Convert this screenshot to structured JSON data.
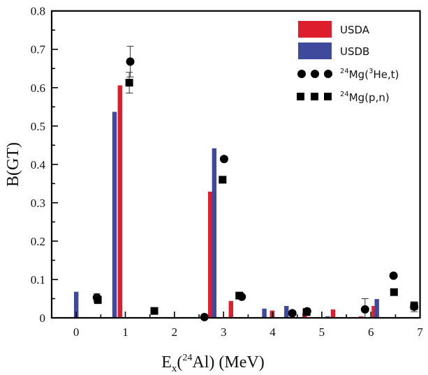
{
  "chart_data": {
    "type": "bar",
    "xlabel_main": "E",
    "xlabel_sub": "x",
    "xlabel_open": "(",
    "xlabel_sup": "24",
    "xlabel_rest": "Al) (MeV)",
    "ylabel": "B(GT)",
    "xlim": [
      -0.5,
      7
    ],
    "ylim": [
      0,
      0.8
    ],
    "xticks": [
      "0",
      "1",
      "2",
      "3",
      "4",
      "5",
      "6",
      "7"
    ],
    "yticks": [
      "0",
      "0.1",
      "0.2",
      "0.3",
      "0.4",
      "0.5",
      "0.6",
      "0.7",
      "0.8"
    ],
    "grid": false,
    "legend_position": "top-right",
    "colors": {
      "USDA": "#dc1e2d",
      "USDB": "#3f4a9c",
      "exp": "#000000"
    },
    "series": [
      {
        "name": "USDA",
        "kind": "bar",
        "x": [
          0.89,
          2.73,
          3.15,
          3.99,
          4.65,
          5.23,
          5.8,
          6.06
        ],
        "y": [
          0.606,
          0.329,
          0.044,
          0.019,
          0.013,
          0.022,
          0.004,
          0.031
        ]
      },
      {
        "name": "USDB",
        "kind": "bar",
        "x": [
          0.0,
          0.78,
          2.81,
          3.83,
          4.28,
          5.12,
          6.12
        ],
        "y": [
          0.068,
          0.537,
          0.442,
          0.024,
          0.031,
          0.004,
          0.049
        ]
      },
      {
        "name": "24Mg(3He,t)",
        "kind": "scatter",
        "marker": "circle",
        "x": [
          0.42,
          1.1,
          2.61,
          3.01,
          3.37,
          4.4,
          4.7,
          5.88,
          6.46,
          6.88
        ],
        "y": [
          0.053,
          0.668,
          0.002,
          0.414,
          0.055,
          0.012,
          0.017,
          0.022,
          0.11,
          0.029
        ],
        "err": [
          0.01,
          0.04,
          0,
          0,
          0,
          0,
          0,
          0.028,
          0,
          0.013
        ]
      },
      {
        "name": "24Mg(p,n)",
        "kind": "scatter",
        "marker": "square",
        "x": [
          0.44,
          1.08,
          1.59,
          2.98,
          3.32,
          4.69,
          6.47,
          6.88
        ],
        "y": [
          0.047,
          0.613,
          0.018,
          0.36,
          0.058,
          0.015,
          0.067,
          0.031
        ],
        "err": [
          0.01,
          0.027,
          0,
          0,
          0,
          0,
          0,
          0
        ]
      }
    ],
    "legend": {
      "usda": "USDA",
      "usdb": "USDB",
      "he_sup1": "24",
      "he_mid": "Mg(",
      "he_sup2": "3",
      "he_end": "He,t)",
      "pn_sup": "24",
      "pn_end": "Mg(p,n)"
    }
  }
}
